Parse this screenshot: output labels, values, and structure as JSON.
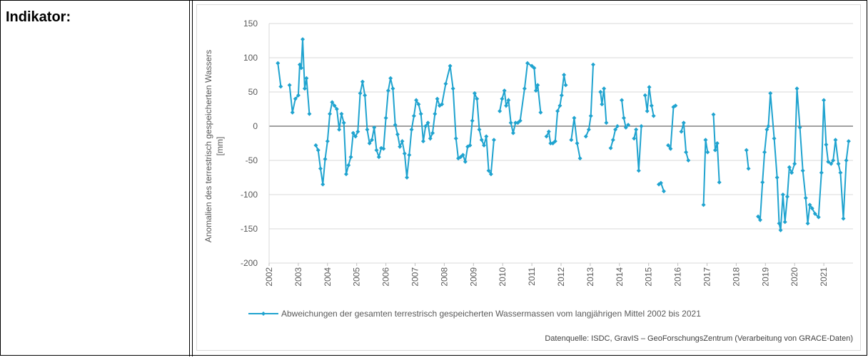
{
  "label": "Indikator:",
  "chart_data": {
    "type": "line",
    "y_label": [
      "Anomalien des terrestrisch gespeicherten Wassers",
      "[mm]"
    ],
    "source": "Datenquelle: ISDC, GravIS – GeoForschungsZentrum (Verarbeitung von GRACE-Daten)",
    "xlim": [
      2002,
      2022
    ],
    "xticks": [
      2002,
      2003,
      2004,
      2005,
      2006,
      2007,
      2008,
      2009,
      2010,
      2011,
      2012,
      2013,
      2014,
      2015,
      2016,
      2017,
      2018,
      2019,
      2020,
      2021
    ],
    "ylim": [
      -200,
      150
    ],
    "yticks": [
      -200,
      -150,
      -100,
      -50,
      0,
      50,
      100,
      150
    ],
    "grid": true,
    "x": [
      2002.3,
      2002.4,
      2002.55,
      2002.7,
      2002.8,
      2002.9,
      2003.0,
      2003.05,
      2003.1,
      2003.15,
      2003.22,
      2003.28,
      2003.38,
      2003.5,
      2003.6,
      2003.68,
      2003.76,
      2003.84,
      2003.92,
      2004.0,
      2004.08,
      2004.16,
      2004.24,
      2004.32,
      2004.4,
      2004.48,
      2004.56,
      2004.64,
      2004.72,
      2004.8,
      2004.88,
      2004.96,
      2005.04,
      2005.12,
      2005.2,
      2005.28,
      2005.36,
      2005.44,
      2005.52,
      2005.6,
      2005.68,
      2005.76,
      2005.84,
      2005.92,
      2006.0,
      2006.08,
      2006.16,
      2006.24,
      2006.32,
      2006.4,
      2006.48,
      2006.56,
      2006.64,
      2006.72,
      2006.8,
      2006.88,
      2006.96,
      2007.04,
      2007.12,
      2007.2,
      2007.28,
      2007.36,
      2007.44,
      2007.52,
      2007.6,
      2007.68,
      2007.76,
      2007.84,
      2007.92,
      2008.05,
      2008.2,
      2008.3,
      2008.4,
      2008.48,
      2008.56,
      2008.64,
      2008.72,
      2008.8,
      2008.88,
      2008.96,
      2009.04,
      2009.12,
      2009.2,
      2009.28,
      2009.36,
      2009.44,
      2009.52,
      2009.6,
      2009.7,
      2009.8,
      2009.9,
      2009.98,
      2010.06,
      2010.12,
      2010.2,
      2010.28,
      2010.36,
      2010.44,
      2010.52,
      2010.6,
      2010.75,
      2010.85,
      2011.0,
      2011.08,
      2011.14,
      2011.2,
      2011.3,
      2011.4,
      2011.5,
      2011.58,
      2011.64,
      2011.72,
      2011.8,
      2011.88,
      2011.96,
      2012.02,
      2012.1,
      2012.16,
      2012.25,
      2012.35,
      2012.45,
      2012.55,
      2012.65,
      2012.75,
      2012.85,
      2012.95,
      2013.02,
      2013.1,
      2013.25,
      2013.35,
      2013.4,
      2013.47,
      2013.55,
      2013.62,
      2013.7,
      2013.78,
      2013.86,
      2013.93,
      2014.0,
      2014.08,
      2014.15,
      2014.22,
      2014.3,
      2014.4,
      2014.5,
      2014.57,
      2014.66,
      2014.75,
      2014.85,
      2014.88,
      2014.95,
      2015.02,
      2015.1,
      2015.17,
      2015.3,
      2015.35,
      2015.42,
      2015.52,
      2015.6,
      2015.67,
      2015.75,
      2015.85,
      2015.92,
      2016.0,
      2016.12,
      2016.2,
      2016.28,
      2016.36,
      2016.6,
      2016.88,
      2016.95,
      2017.02,
      2017.12,
      2017.22,
      2017.28,
      2017.35,
      2017.42,
      2017.9,
      2018.35,
      2018.42,
      2018.6,
      2018.75,
      2018.82,
      2018.9,
      2018.97,
      2019.05,
      2019.1,
      2019.17,
      2019.3,
      2019.4,
      2019.47,
      2019.52,
      2019.6,
      2019.67,
      2019.75,
      2019.82,
      2019.9,
      2020.0,
      2020.08,
      2020.18,
      2020.28,
      2020.38,
      2020.45,
      2020.52,
      2020.6,
      2020.7,
      2020.82,
      2020.92,
      2021.0,
      2021.08,
      2021.15,
      2021.25,
      2021.32,
      2021.4,
      2021.5,
      2021.57,
      2021.67,
      2021.77,
      2021.85
    ],
    "series": [
      {
        "name": "Abweichungen der gesamten terrestrisch gespeicherten Wassermassen vom langjährigen Mittel 2002 bis 2021",
        "color": "#1fa3cf",
        "values": [
          92,
          58,
          null,
          60,
          20,
          40,
          45,
          90,
          85,
          127,
          55,
          70,
          18,
          null,
          -28,
          -35,
          -62,
          -85,
          -48,
          -22,
          18,
          35,
          30,
          25,
          -5,
          18,
          5,
          -70,
          -57,
          -45,
          -10,
          -15,
          -8,
          48,
          65,
          45,
          -5,
          -25,
          -20,
          -2,
          -35,
          -45,
          -32,
          -33,
          12,
          52,
          70,
          55,
          2,
          -12,
          -30,
          -22,
          -40,
          -75,
          -42,
          -5,
          15,
          38,
          32,
          18,
          -22,
          0,
          5,
          -18,
          -10,
          18,
          40,
          30,
          32,
          62,
          88,
          55,
          -18,
          -47,
          -45,
          -42,
          -52,
          -30,
          -28,
          8,
          48,
          40,
          -5,
          -20,
          -28,
          -15,
          -65,
          -70,
          -20,
          null,
          22,
          40,
          52,
          30,
          38,
          5,
          -10,
          5,
          5,
          8,
          55,
          92,
          88,
          85,
          52,
          60,
          20,
          null,
          -15,
          -8,
          -25,
          -25,
          -22,
          22,
          30,
          45,
          75,
          60,
          null,
          -20,
          12,
          -25,
          -47,
          null,
          -15,
          -5,
          15,
          90,
          null,
          50,
          32,
          55,
          5,
          null,
          -32,
          -20,
          -5,
          0,
          null,
          38,
          12,
          -2,
          2,
          null,
          -18,
          -5,
          -65,
          0,
          null,
          45,
          22,
          57,
          30,
          15,
          null,
          -85,
          -83,
          -95,
          null,
          -28,
          -33,
          28,
          30,
          null,
          -8,
          5,
          -38,
          -50,
          null,
          -115,
          -20,
          -38,
          null,
          17,
          -35,
          -25,
          -82,
          null,
          -35,
          -62,
          null,
          -132,
          -137,
          -82,
          -38,
          -5,
          0,
          48,
          -18,
          -75,
          -142,
          -152,
          -100,
          -140,
          -103,
          -60,
          -68,
          -55,
          55,
          -2,
          -65,
          -105,
          -142,
          -115,
          -120,
          -128,
          -133,
          -68,
          38,
          -27,
          -52,
          -55,
          -50,
          -20,
          -55,
          -68,
          -135,
          -50,
          -22
        ]
      }
    ]
  }
}
